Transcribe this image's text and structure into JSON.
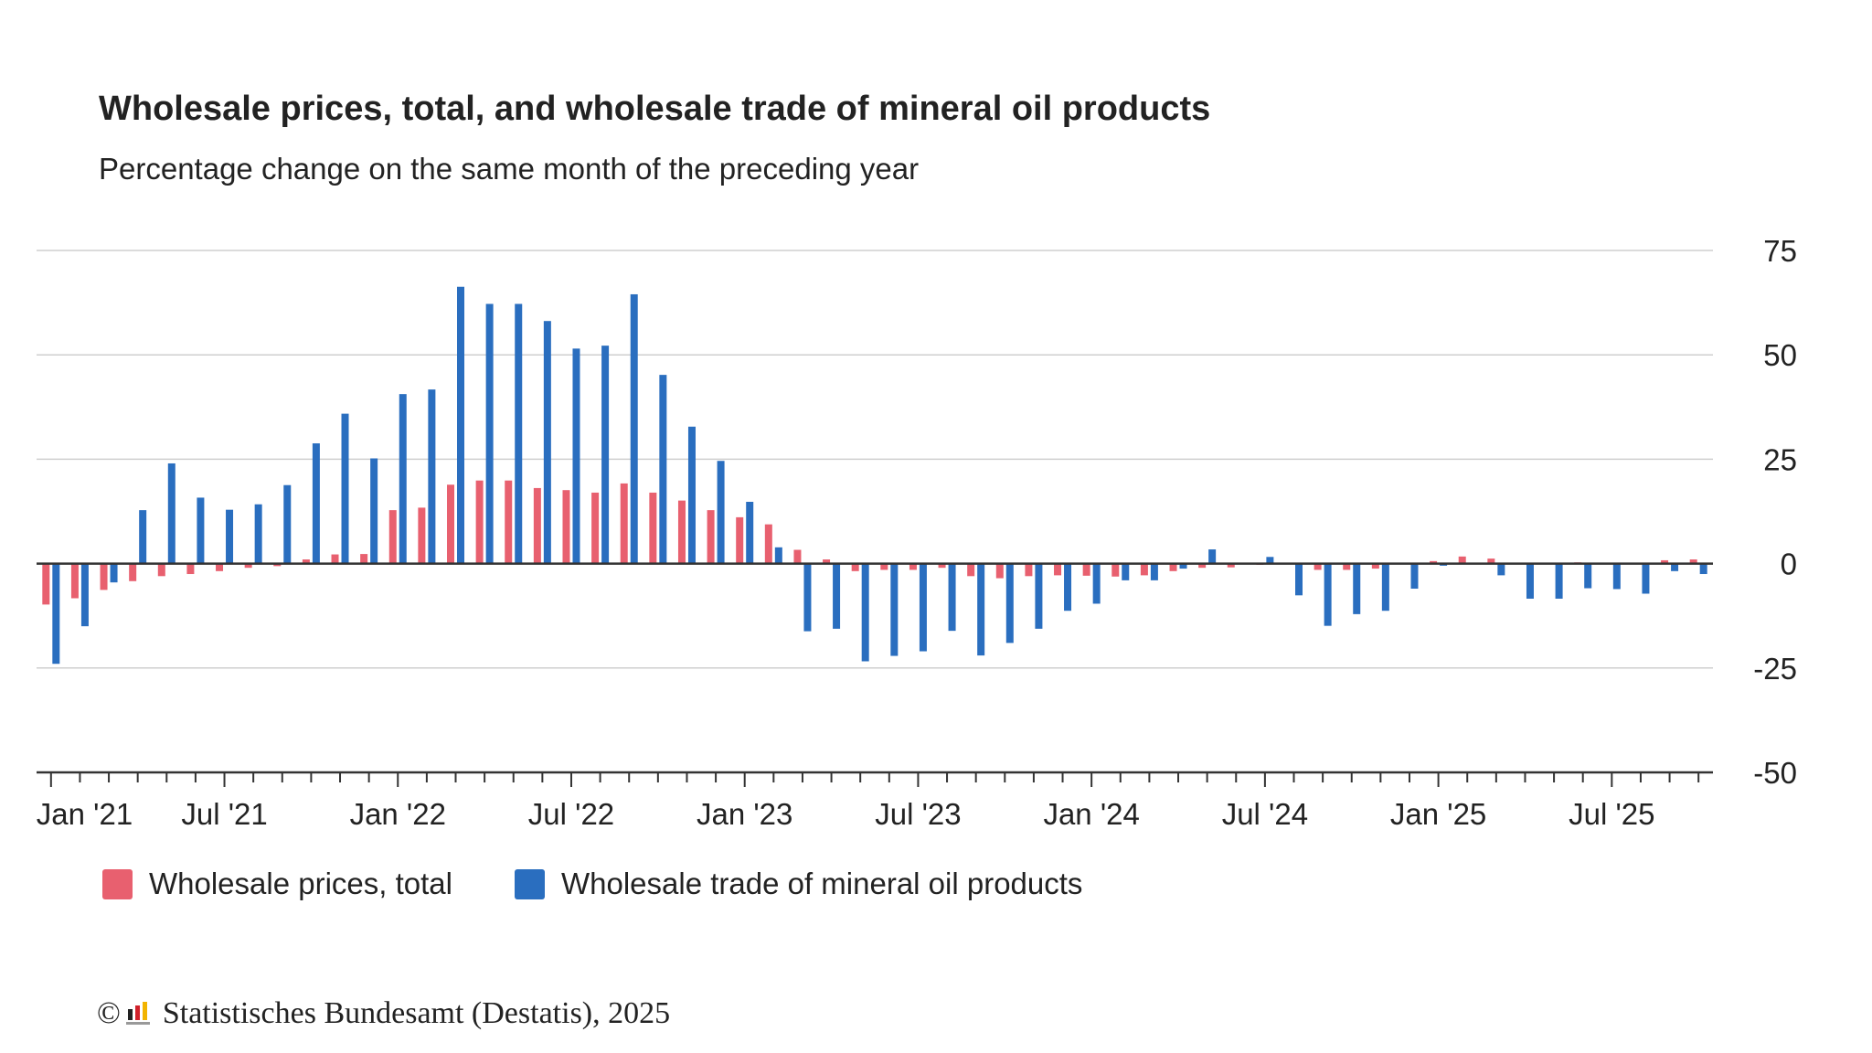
{
  "chart_data": {
    "type": "bar",
    "title": "Wholesale prices, total, and wholesale trade of mineral oil products",
    "subtitle": "Percentage change on the same month of the preceding year",
    "xlabel": "",
    "ylabel": "",
    "ylim": [
      -50,
      75
    ],
    "y_ticks": [
      75,
      50,
      25,
      0,
      -25,
      -50
    ],
    "x_tick_labels": [
      {
        "label": "Jan '21",
        "index": 0
      },
      {
        "label": "Jul '21",
        "index": 6
      },
      {
        "label": "Jan '22",
        "index": 12
      },
      {
        "label": "Jul '22",
        "index": 18
      },
      {
        "label": "Jan '23",
        "index": 24
      },
      {
        "label": "Jul '23",
        "index": 30
      },
      {
        "label": "Jan '24",
        "index": 36
      },
      {
        "label": "Jul '24",
        "index": 42
      },
      {
        "label": "Jan '25",
        "index": 48
      },
      {
        "label": "Jul '25",
        "index": 54
      }
    ],
    "categories": [
      "2021-01",
      "2021-02",
      "2021-03",
      "2021-04",
      "2021-05",
      "2021-06",
      "2021-07",
      "2021-08",
      "2021-09",
      "2021-10",
      "2021-11",
      "2021-12",
      "2022-01",
      "2022-02",
      "2022-03",
      "2022-04",
      "2022-05",
      "2022-06",
      "2022-07",
      "2022-08",
      "2022-09",
      "2022-10",
      "2022-11",
      "2022-12",
      "2023-01",
      "2023-02",
      "2023-03",
      "2023-04",
      "2023-05",
      "2023-06",
      "2023-07",
      "2023-08",
      "2023-09",
      "2023-10",
      "2023-11",
      "2023-12",
      "2024-01",
      "2024-02",
      "2024-03",
      "2024-04",
      "2024-05",
      "2024-06",
      "2024-07",
      "2024-08",
      "2024-09",
      "2024-10",
      "2024-11",
      "2024-12",
      "2025-01",
      "2025-02",
      "2025-03",
      "2025-04",
      "2025-05",
      "2025-06",
      "2025-07",
      "2025-08",
      "2025-09",
      "2025-10"
    ],
    "series": [
      {
        "name": "Wholesale prices, total",
        "color": "#e8606f",
        "values": [
          -9.8,
          -8.3,
          -6.3,
          -4.2,
          -3.0,
          -2.5,
          -1.8,
          -1.0,
          -0.6,
          1.0,
          2.2,
          2.3,
          12.8,
          13.4,
          18.9,
          19.9,
          19.9,
          18.1,
          17.6,
          17.0,
          19.2,
          17.0,
          15.1,
          12.8,
          11.1,
          9.4,
          3.3,
          1.0,
          -1.8,
          -1.5,
          -1.5,
          -1.0,
          -3.0,
          -3.5,
          -3.0,
          -2.8,
          -2.9,
          -3.1,
          -2.8,
          -1.8,
          -1.0,
          -0.9,
          -0.3,
          -0.1,
          -1.5,
          -1.5,
          -1.2,
          -0.2,
          0.6,
          1.7,
          1.2,
          0.1,
          0.0,
          0.3,
          0.0,
          -0.1,
          0.8,
          1.0
        ]
      },
      {
        "name": "Wholesale trade of mineral oil products",
        "color": "#2a6ebf",
        "values": [
          -24.0,
          -15.0,
          -4.5,
          12.8,
          24.0,
          15.8,
          12.9,
          14.2,
          18.8,
          28.8,
          35.9,
          25.2,
          40.6,
          41.7,
          66.3,
          62.2,
          62.2,
          58.1,
          51.5,
          52.2,
          64.5,
          45.2,
          32.8,
          24.6,
          14.8,
          3.9,
          -16.2,
          -15.6,
          -23.4,
          -22.1,
          -21.0,
          -16.1,
          -22.0,
          -19.0,
          -15.6,
          -11.3,
          -9.6,
          -4.0,
          -4.0,
          -1.2,
          3.4,
          -0.2,
          1.6,
          -7.6,
          -14.9,
          -12.1,
          -11.3,
          -6.0,
          -0.5,
          0.2,
          -2.8,
          -8.4,
          -8.4,
          -5.9,
          -6.1,
          -7.2,
          -1.8,
          -2.5
        ]
      }
    ],
    "grid": true,
    "legend_position": "bottom-left"
  },
  "legend": [
    {
      "label": "Wholesale prices, total",
      "color": "#e8606f"
    },
    {
      "label": "Wholesale trade of mineral oil products",
      "color": "#2a6ebf"
    }
  ],
  "footer": {
    "copyright_symbol": "©",
    "source": "Statistisches Bundesamt (Destatis), 2025"
  }
}
